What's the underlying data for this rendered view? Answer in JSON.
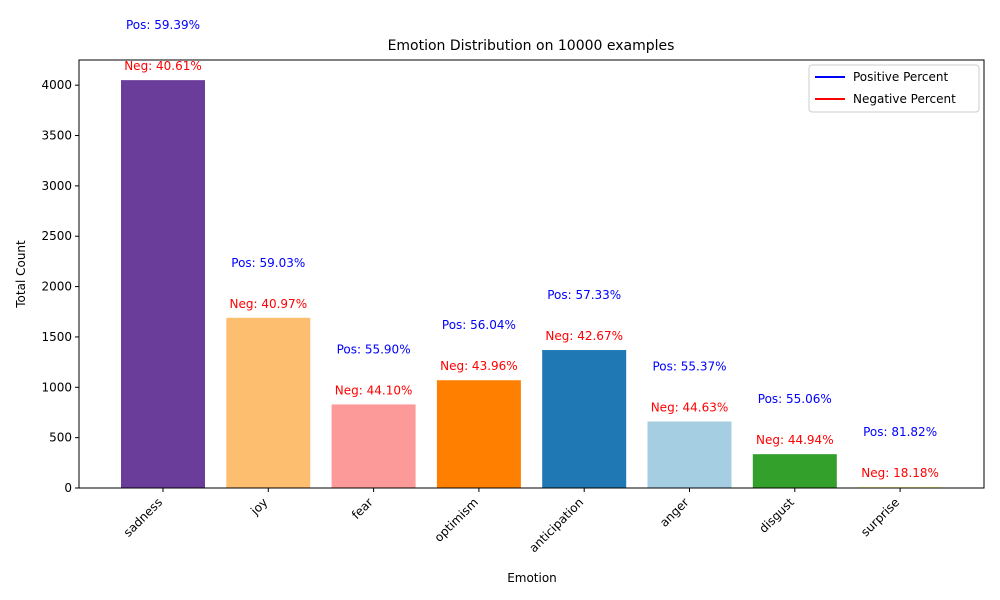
{
  "chart_data": {
    "type": "bar",
    "title": "Emotion Distribution on 10000 examples",
    "xlabel": "Emotion",
    "ylabel": "Total Count",
    "ylim": [
      0,
      4250
    ],
    "yticks": [
      0,
      500,
      1000,
      1500,
      2000,
      2500,
      3000,
      3500,
      4000
    ],
    "categories": [
      "sadness",
      "joy",
      "fear",
      "optimism",
      "anticipation",
      "anger",
      "disgust",
      "surprise"
    ],
    "values": [
      4050,
      1690,
      830,
      1070,
      1370,
      660,
      336,
      11
    ],
    "bar_colors": [
      "#6a3d9a",
      "#fdbf6f",
      "#fb9a99",
      "#ff7f00",
      "#1f78b4",
      "#a6cee3",
      "#33a02c",
      "#ffff99"
    ],
    "pos_labels": [
      "Pos: 59.39%",
      "Pos: 59.03%",
      "Pos: 55.90%",
      "Pos: 56.04%",
      "Pos: 57.33%",
      "Pos: 55.37%",
      "Pos: 55.06%",
      "Pos: 81.82%"
    ],
    "neg_labels": [
      "Neg: 40.61%",
      "Neg: 40.97%",
      "Neg: 44.10%",
      "Neg: 43.96%",
      "Neg: 42.67%",
      "Neg: 44.63%",
      "Neg: 44.94%",
      "Neg: 18.18%"
    ],
    "pos_color": "#0000ff",
    "neg_color": "#ff0000",
    "legend": {
      "placement": "top-right",
      "entries": [
        {
          "label": "Positive Percent",
          "color": "#0000ff"
        },
        {
          "label": "Negative Percent",
          "color": "#ff0000"
        }
      ]
    },
    "grid": false
  }
}
